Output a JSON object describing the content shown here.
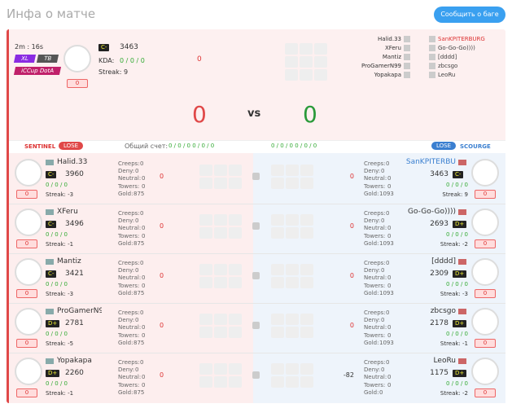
{
  "header": {
    "title": "Инфа о матче",
    "button": "Сообщить о баге"
  },
  "match": {
    "time": "2m : 16s",
    "tags": [
      "XL",
      "TB",
      "iCCup DotA"
    ],
    "badge": "0",
    "rank": "C-",
    "rating": "3463",
    "kda_label": "KDA:",
    "kda": "0 / 0 / 0",
    "streak": "Streak: 9",
    "center": "0",
    "sentinel_list": [
      "Halid.33",
      "XFeru",
      "Mantiz",
      "ProGamerN99",
      "Yopakapa"
    ],
    "scourge_list": [
      "SanKPITERBURG",
      "Go-Go-Go))))",
      "[dddd]",
      "zbcsgo",
      "LeoRu"
    ],
    "score_left": "0",
    "vs": "vs",
    "score_right": "0"
  },
  "teams": {
    "sentinel": "SENTINEL",
    "sentinel_result": "LOSE",
    "total_label": "Общий счет:",
    "sentinel_total": "0 / 0 / 0   0 / 0 / 0",
    "scourge_total": "0 / 0 / 0   0 / 0 / 0",
    "scourge_result": "LOSE",
    "scourge": "SCOURGE"
  },
  "stat_labels": [
    "Creeps:",
    "Deny:",
    "Neutral:",
    "Towers:",
    "Gold:"
  ],
  "sentinel": [
    {
      "name": "Halid.33",
      "rank": "C-",
      "rating": "3960",
      "kda": "0 / 0 / 0",
      "streak": "Streak: -3",
      "badge": "0",
      "score": "0",
      "stats": [
        0,
        0,
        0,
        0,
        875
      ]
    },
    {
      "name": "XFeru",
      "rank": "C-",
      "rating": "3496",
      "kda": "0 / 0 / 0",
      "streak": "Streak: -1",
      "badge": "0",
      "score": "0",
      "stats": [
        0,
        0,
        0,
        0,
        875
      ]
    },
    {
      "name": "Mantiz",
      "rank": "C-",
      "rating": "3421",
      "kda": "0 / 0 / 0",
      "streak": "Streak: -3",
      "badge": "0",
      "score": "0",
      "stats": [
        0,
        0,
        0,
        0,
        875
      ]
    },
    {
      "name": "ProGamerN99",
      "rank": "D+",
      "rating": "2781",
      "kda": "0 / 0 / 0",
      "streak": "Streak: -5",
      "badge": "0",
      "score": "0",
      "stats": [
        0,
        0,
        0,
        0,
        875
      ]
    },
    {
      "name": "Yopakapa",
      "rank": "D+",
      "rating": "2260",
      "kda": "0 / 0 / 0",
      "streak": "Streak: -1",
      "badge": "0",
      "score": "0",
      "stats": [
        0,
        0,
        0,
        0,
        875
      ]
    }
  ],
  "scourge": [
    {
      "name": "SanKPITERBU",
      "rank": "C-",
      "rating": "3463",
      "kda": "0 / 0 / 0",
      "streak": "Streak: 9",
      "badge": "0",
      "score": "0",
      "stats": [
        0,
        0,
        0,
        0,
        1093
      ]
    },
    {
      "name": "Go-Go-Go))))",
      "rank": "D+",
      "rating": "2693",
      "kda": "0 / 0 / 0",
      "streak": "Streak: -2",
      "badge": "0",
      "score": "0",
      "stats": [
        0,
        0,
        0,
        0,
        1093
      ]
    },
    {
      "name": "[dddd]",
      "rank": "D+",
      "rating": "2309",
      "kda": "0 / 0 / 0",
      "streak": "Streak: -3",
      "badge": "0",
      "score": "0",
      "stats": [
        0,
        0,
        0,
        0,
        1093
      ]
    },
    {
      "name": "zbcsgo",
      "rank": "D+",
      "rating": "2178",
      "kda": "0 / 0 / 0",
      "streak": "Streak: -1",
      "badge": "0",
      "score": "0",
      "stats": [
        0,
        0,
        0,
        0,
        1093
      ]
    },
    {
      "name": "LeoRu",
      "rank": "D+",
      "rating": "1175",
      "kda": "0 / 0 / 0",
      "streak": "Streak: -2",
      "badge": "0",
      "score": "-82",
      "stats": [
        0,
        0,
        0,
        0,
        0
      ]
    }
  ]
}
